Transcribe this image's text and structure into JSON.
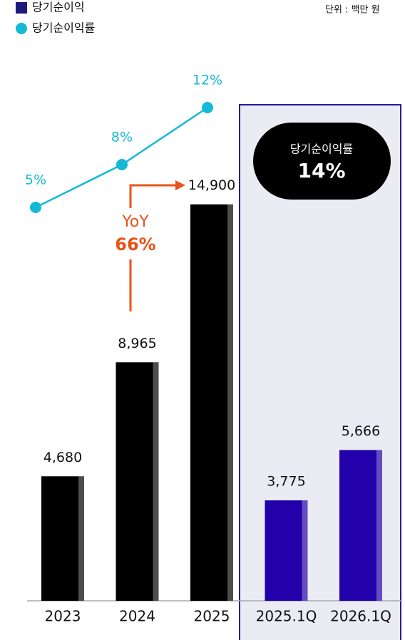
{
  "chart_data": {
    "type": "bar",
    "unit": "단위 : 백만 원",
    "categories": [
      "2023",
      "2024",
      "2025",
      "2025.1Q",
      "2026.1Q"
    ],
    "series": [
      {
        "name": "당기순이익",
        "type": "bar",
        "color": "#1f1a7a",
        "bar_colors": [
          "#000000",
          "#000000",
          "#000000",
          "#2200aa",
          "#2200aa"
        ],
        "values": [
          4680,
          8965,
          14900,
          3775,
          5666
        ],
        "value_labels": [
          "4,680",
          "8,965",
          "14,900",
          "3,775",
          "5,666"
        ]
      },
      {
        "name": "당기순이익률",
        "type": "line",
        "axis": "y2",
        "color": "#14b9d6",
        "values": [
          5,
          8,
          12,
          null,
          null
        ],
        "value_labels": [
          "5%",
          "8%",
          "12%",
          null,
          null
        ]
      }
    ],
    "ylim": [
      0,
      15000
    ],
    "y2lim": [
      0,
      15
    ],
    "callout": {
      "label": "당기순이익률",
      "text": "14%"
    },
    "growth": {
      "label": "YoY",
      "text": "66%"
    }
  }
}
